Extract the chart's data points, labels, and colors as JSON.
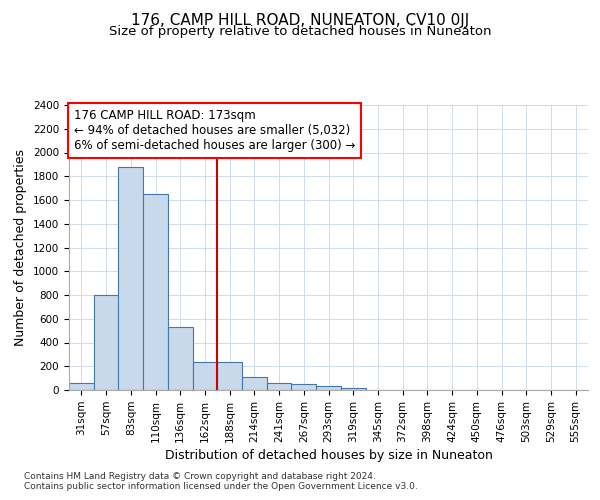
{
  "title": "176, CAMP HILL ROAD, NUNEATON, CV10 0JJ",
  "subtitle": "Size of property relative to detached houses in Nuneaton",
  "xlabel": "Distribution of detached houses by size in Nuneaton",
  "ylabel": "Number of detached properties",
  "categories": [
    "31sqm",
    "57sqm",
    "83sqm",
    "110sqm",
    "136sqm",
    "162sqm",
    "188sqm",
    "214sqm",
    "241sqm",
    "267sqm",
    "293sqm",
    "319sqm",
    "345sqm",
    "372sqm",
    "398sqm",
    "424sqm",
    "450sqm",
    "476sqm",
    "503sqm",
    "529sqm",
    "555sqm"
  ],
  "values": [
    60,
    800,
    1880,
    1650,
    530,
    240,
    240,
    110,
    60,
    50,
    30,
    20,
    0,
    0,
    0,
    0,
    0,
    0,
    0,
    0,
    0
  ],
  "bar_color": "#c8d9ec",
  "bar_edge_color": "#4477aa",
  "ylim": [
    0,
    2400
  ],
  "yticks": [
    0,
    200,
    400,
    600,
    800,
    1000,
    1200,
    1400,
    1600,
    1800,
    2000,
    2200,
    2400
  ],
  "annot_line1": "176 CAMP HILL ROAD: 173sqm",
  "annot_line2": "← 94% of detached houses are smaller (5,032)",
  "annot_line3": "6% of semi-detached houses are larger (300) →",
  "vline_color": "#cc0000",
  "vline_x_index": 5.5,
  "grid_color": "#c8d8e8",
  "footnote1": "Contains HM Land Registry data © Crown copyright and database right 2024.",
  "footnote2": "Contains public sector information licensed under the Open Government Licence v3.0.",
  "title_fontsize": 11,
  "subtitle_fontsize": 9.5,
  "axis_label_fontsize": 9,
  "tick_fontsize": 7.5,
  "annot_fontsize": 8.5,
  "footnote_fontsize": 6.5
}
